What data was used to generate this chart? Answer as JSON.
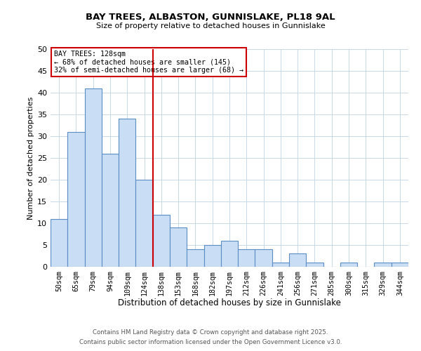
{
  "title": "BAY TREES, ALBASTON, GUNNISLAKE, PL18 9AL",
  "subtitle": "Size of property relative to detached houses in Gunnislake",
  "xlabel": "Distribution of detached houses by size in Gunnislake",
  "ylabel": "Number of detached properties",
  "categories": [
    "50sqm",
    "65sqm",
    "79sqm",
    "94sqm",
    "109sqm",
    "124sqm",
    "138sqm",
    "153sqm",
    "168sqm",
    "182sqm",
    "197sqm",
    "212sqm",
    "226sqm",
    "241sqm",
    "256sqm",
    "271sqm",
    "285sqm",
    "300sqm",
    "315sqm",
    "329sqm",
    "344sqm"
  ],
  "values": [
    11,
    31,
    41,
    26,
    34,
    20,
    12,
    9,
    4,
    5,
    6,
    4,
    4,
    1,
    3,
    1,
    0,
    1,
    0,
    1,
    1
  ],
  "bar_color": "#c9ddf5",
  "bar_edge_color": "#5b8ec4",
  "vline_x_index": 5.5,
  "vline_color": "#cc0000",
  "annotation_title": "BAY TREES: 128sqm",
  "annotation_line1": "← 68% of detached houses are smaller (145)",
  "annotation_line2": "32% of semi-detached houses are larger (68) →",
  "annotation_box_color": "#cc0000",
  "ylim": [
    0,
    50
  ],
  "yticks": [
    0,
    5,
    10,
    15,
    20,
    25,
    30,
    35,
    40,
    45,
    50
  ],
  "background_color": "#ffffff",
  "grid_color": "#c8d8e8",
  "footer_line1": "Contains HM Land Registry data © Crown copyright and database right 2025.",
  "footer_line2": "Contains public sector information licensed under the Open Government Licence v3.0."
}
